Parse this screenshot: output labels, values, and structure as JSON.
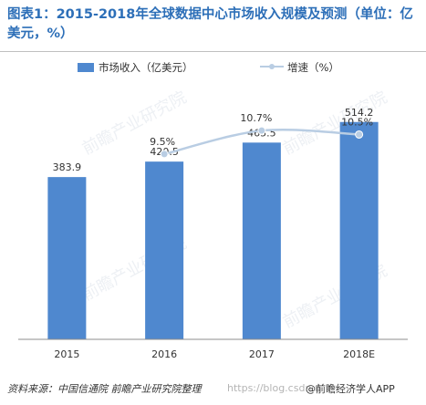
{
  "title": "图表1：2015-2018年全球数据中心市场收入规模及预测（单位：亿美元，%）",
  "source_text": "资料来源：中国信通院 前瞻产业研究院整理",
  "url_watermark": "https://blog.csdn.n",
  "credit_text": "@前瞻经济学人APP",
  "watermark_text": "前瞻产业研究院",
  "colors": {
    "title": "#2d6fb8",
    "bar": "#4f88cf",
    "line": "#b9cde3",
    "axis": "#8c8c8c",
    "text": "#333333"
  },
  "chart_data": {
    "type": "bar",
    "categories": [
      "2015",
      "2016",
      "2017",
      "2018E"
    ],
    "series": [
      {
        "name": "市场收入（亿美元）",
        "type": "bar",
        "axis": "left",
        "values": [
          383.9,
          420.5,
          465.5,
          514.2
        ],
        "labels": [
          "383.9",
          "420.5",
          "465.5",
          "514.2"
        ]
      },
      {
        "name": "增速（%）",
        "type": "line",
        "axis": "right",
        "smooth": true,
        "values": [
          null,
          9.5,
          10.7,
          10.5
        ],
        "labels": [
          "",
          "9.5%",
          "10.7%",
          "10.5%"
        ]
      }
    ],
    "left_axis_range": [
      0,
      600
    ],
    "right_axis_range": [
      0,
      13
    ],
    "legend_position": "top",
    "grid": false
  }
}
